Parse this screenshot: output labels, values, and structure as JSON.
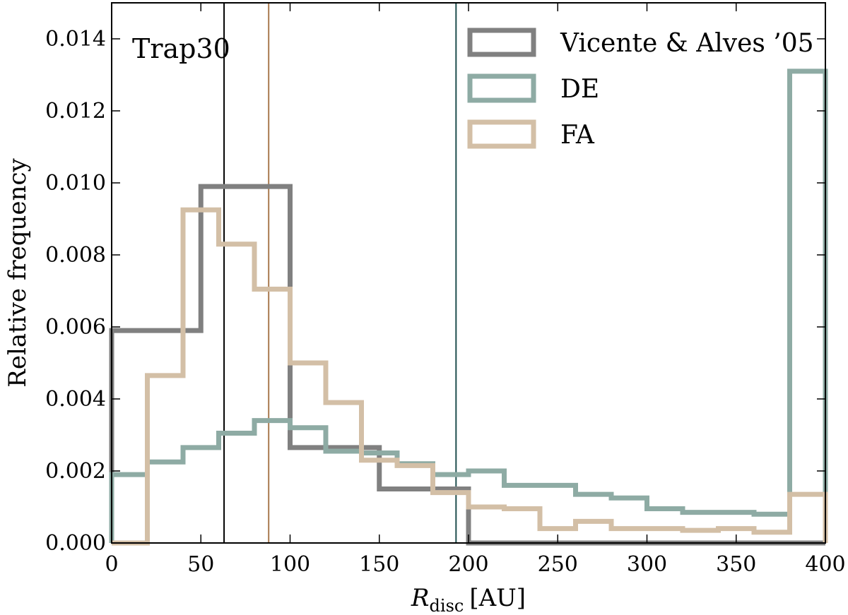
{
  "chart_data": {
    "type": "histogram-step",
    "annotation": "Trap30",
    "xlabel_main": "R",
    "xlabel_sub": "disc",
    "xlabel_unit": "[AU]",
    "ylabel": "Relative frequency",
    "xlim": [
      0,
      400
    ],
    "ylim": [
      0,
      0.015
    ],
    "xticks": [
      0,
      50,
      100,
      150,
      200,
      250,
      300,
      350,
      400
    ],
    "yticks": [
      0.0,
      0.002,
      0.004,
      0.006,
      0.008,
      0.01,
      0.012,
      0.014
    ],
    "ytick_labels": [
      "0.000",
      "0.002",
      "0.004",
      "0.006",
      "0.008",
      "0.010",
      "0.012",
      "0.014"
    ],
    "legend_position": "top-right",
    "series": [
      {
        "name": "Vicente & Alves ’05",
        "color": "#808080",
        "edges": [
          0,
          50,
          100,
          150,
          200,
          400
        ],
        "values": [
          0.0059,
          0.0099,
          0.00265,
          0.0015,
          0.0
        ]
      },
      {
        "name": "DE",
        "color": "#8eaba4",
        "edges": [
          0,
          20,
          40,
          60,
          80,
          100,
          120,
          140,
          160,
          180,
          200,
          220,
          240,
          260,
          280,
          300,
          320,
          340,
          360,
          380,
          400
        ],
        "values": [
          0.0019,
          0.00225,
          0.00265,
          0.00305,
          0.0034,
          0.0032,
          0.00255,
          0.0025,
          0.0022,
          0.0019,
          0.002,
          0.0016,
          0.0016,
          0.00135,
          0.00125,
          0.00095,
          0.00085,
          0.00085,
          0.0008,
          0.0131
        ]
      },
      {
        "name": "FA",
        "color": "#d3bfa6",
        "edges": [
          0,
          20,
          40,
          60,
          80,
          100,
          120,
          140,
          160,
          180,
          200,
          220,
          240,
          260,
          280,
          300,
          320,
          340,
          360,
          380,
          400
        ],
        "values": [
          0.0,
          0.00465,
          0.00925,
          0.0083,
          0.00705,
          0.005,
          0.0039,
          0.0023,
          0.00215,
          0.0014,
          0.001,
          0.00095,
          0.0004,
          0.0006,
          0.0004,
          0.0004,
          0.00035,
          0.0004,
          0.0003,
          0.00135
        ]
      }
    ],
    "vlines": [
      {
        "x": 63,
        "color": "#000000"
      },
      {
        "x": 88,
        "color": "#a8794e"
      },
      {
        "x": 193,
        "color": "#1f4f4f"
      }
    ]
  }
}
